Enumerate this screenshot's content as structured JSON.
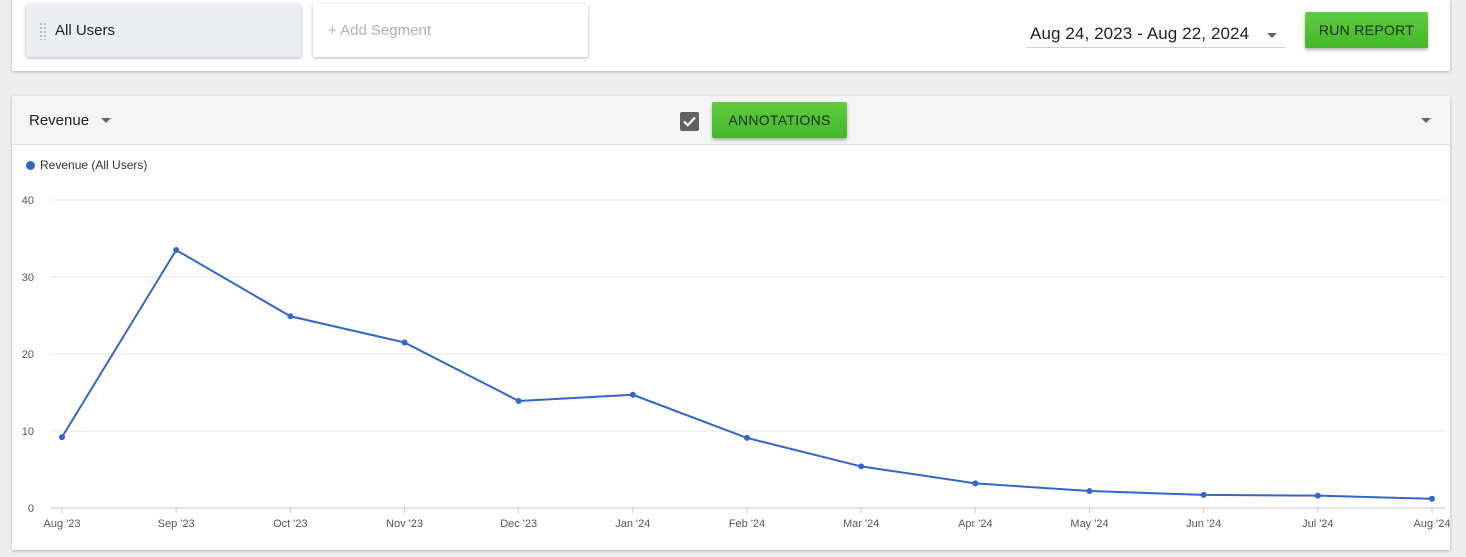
{
  "segments": {
    "active_label": "All Users",
    "add_label": "+ Add Segment"
  },
  "date_range": {
    "value": "Aug 24, 2023 - Aug 22, 2024"
  },
  "run_report_label": "RUN REPORT",
  "chart_header": {
    "metric_label": "Revenue",
    "annotations_checked": true,
    "annotations_label": "ANNOTATIONS"
  },
  "colors": {
    "accent_green": "#4cbb31",
    "series_blue": "#3366cc"
  },
  "chart_data": {
    "type": "line",
    "title": "",
    "xlabel": "",
    "ylabel": "",
    "categories": [
      "Aug '23",
      "Sep '23",
      "Oct '23",
      "Nov '23",
      "Dec '23",
      "Jan '24",
      "Feb '24",
      "Mar '24",
      "Apr '24",
      "May '24",
      "Jun '24",
      "Jul '24",
      "Aug '24"
    ],
    "series": [
      {
        "name": "Revenue (All Users)",
        "color": "#3366cc",
        "values": [
          9.2,
          33.5,
          24.9,
          21.5,
          13.9,
          14.7,
          9.1,
          5.4,
          3.2,
          2.2,
          1.7,
          1.6,
          1.2
        ]
      }
    ],
    "yticks": [
      "0",
      "10",
      "20",
      "30",
      "40"
    ],
    "ylim": [
      0,
      40
    ],
    "grid": true,
    "legend_position": "top-left"
  }
}
